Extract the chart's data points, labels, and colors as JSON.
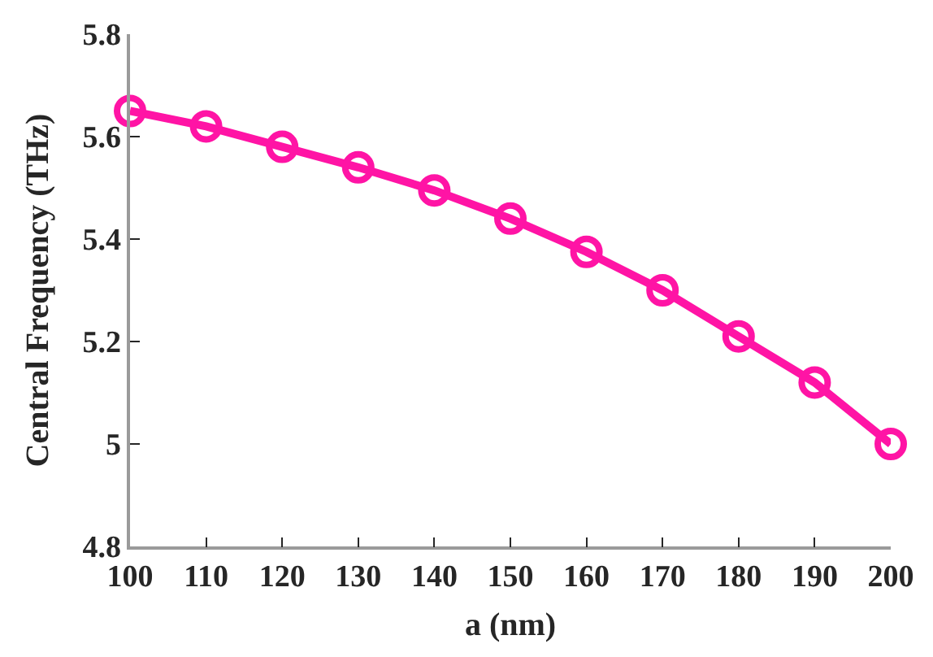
{
  "chart_data": {
    "type": "line",
    "xlabel": "a (nm)",
    "ylabel": "Central Frequency (THz)",
    "x": [
      100,
      110,
      120,
      130,
      140,
      150,
      160,
      170,
      180,
      190,
      200
    ],
    "series": [
      {
        "color": "#ff14a5",
        "values": [
          5.65,
          5.62,
          5.58,
          5.54,
          5.495,
          5.44,
          5.375,
          5.3,
          5.21,
          5.12,
          5.0
        ]
      }
    ],
    "xlim": [
      100,
      200
    ],
    "xticks": [
      100,
      110,
      120,
      130,
      140,
      150,
      160,
      170,
      180,
      190,
      200
    ],
    "ylim": [
      4.8,
      5.8
    ],
    "yticks": [
      4.8,
      5,
      5.2,
      5.4,
      5.6,
      5.8
    ],
    "marker": "circle",
    "line_style": "solid"
  }
}
